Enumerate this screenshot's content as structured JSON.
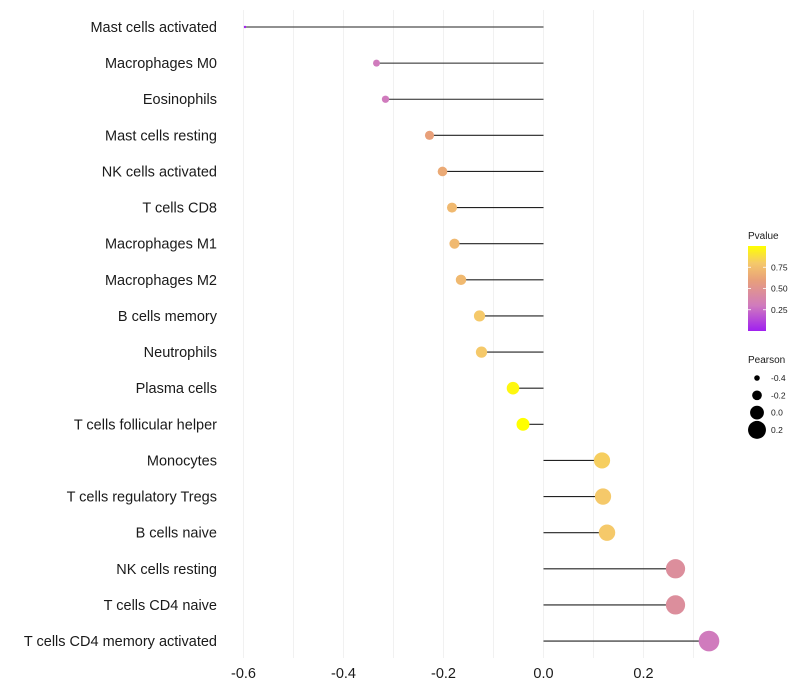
{
  "chart_data": {
    "type": "lollipop",
    "categories": [
      "Mast cells activated",
      "Macrophages M0",
      "Eosinophils",
      "Mast cells resting",
      "NK cells activated",
      "T cells CD8",
      "Macrophages M1",
      "Macrophages M2",
      "B cells memory",
      "Neutrophils",
      "Plasma cells",
      "T cells follicular helper",
      "Monocytes",
      "T cells regulatory  Tregs ",
      "B cells naive",
      "NK cells resting",
      "T cells CD4 naive",
      "T cells CD4 memory activated"
    ],
    "pearson": [
      -0.597,
      -0.334,
      -0.316,
      -0.228,
      -0.202,
      -0.183,
      -0.178,
      -0.165,
      -0.128,
      -0.124,
      -0.061,
      -0.041,
      0.117,
      0.119,
      0.127,
      0.264,
      0.264,
      0.331
    ],
    "pvalue": [
      0.01,
      0.3,
      0.3,
      0.6,
      0.65,
      0.72,
      0.72,
      0.72,
      0.8,
      0.8,
      0.97,
      1.0,
      0.82,
      0.8,
      0.8,
      0.45,
      0.45,
      0.3
    ],
    "x_ticks": [
      -0.6,
      -0.4,
      -0.2,
      0.0,
      0.2
    ],
    "x_tick_labels": [
      "-0.6",
      "-0.4",
      "-0.2",
      "0.0",
      "0.2"
    ],
    "xlim": [
      -0.6,
      0.33
    ],
    "xlabel": "",
    "ylabel": "",
    "legend_position": "right",
    "color_legend": {
      "title": "Pvalue",
      "ticks": [
        0.25,
        0.5,
        0.75
      ],
      "tick_labels": [
        "0.25",
        "0.50",
        "0.75"
      ],
      "range": [
        0.0,
        1.0
      ],
      "colors": [
        "#a020f0",
        "#d07bbd",
        "#e8a07a",
        "#f5c96a",
        "#ffff00"
      ]
    },
    "size_legend": {
      "title": "Pearson",
      "values": [
        -0.4,
        -0.2,
        0.0,
        0.2
      ],
      "labels": [
        "-0.4",
        "-0.2",
        "0.0",
        "0.2"
      ]
    }
  }
}
